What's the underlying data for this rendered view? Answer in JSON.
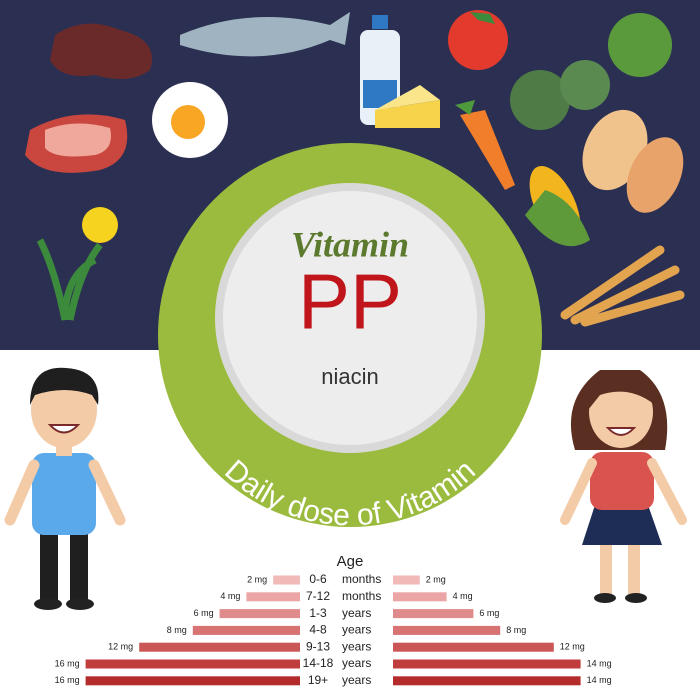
{
  "heading": {
    "title": "Vitamin",
    "name": "PP",
    "subtitle": "niacin",
    "ring_text": "Daily dose of Vitamin"
  },
  "chart_data": {
    "type": "butterfly",
    "title": "Age",
    "categories": [
      "0-6",
      "7-12",
      "1-3",
      "4-8",
      "9-13",
      "14-18",
      "19+"
    ],
    "units": [
      "months",
      "months",
      "years",
      "years",
      "years",
      "years",
      "years"
    ],
    "colors": [
      "#f2b9b9",
      "#eba5a5",
      "#e08b8b",
      "#d77373",
      "#cb5656",
      "#c03d3d",
      "#b42b2b"
    ],
    "series": [
      {
        "side": "left",
        "values": [
          2,
          4,
          6,
          8,
          12,
          16,
          16
        ],
        "value_labels": [
          "2 mg",
          "4 mg",
          "6 mg",
          "8 mg",
          "12 mg",
          "16 mg",
          "16 mg"
        ]
      },
      {
        "side": "right",
        "values": [
          2,
          4,
          6,
          8,
          12,
          14,
          14
        ],
        "value_labels": [
          "2 mg",
          "4 mg",
          "6 mg",
          "8 mg",
          "12 mg",
          "14 mg",
          "14 mg"
        ]
      }
    ]
  }
}
